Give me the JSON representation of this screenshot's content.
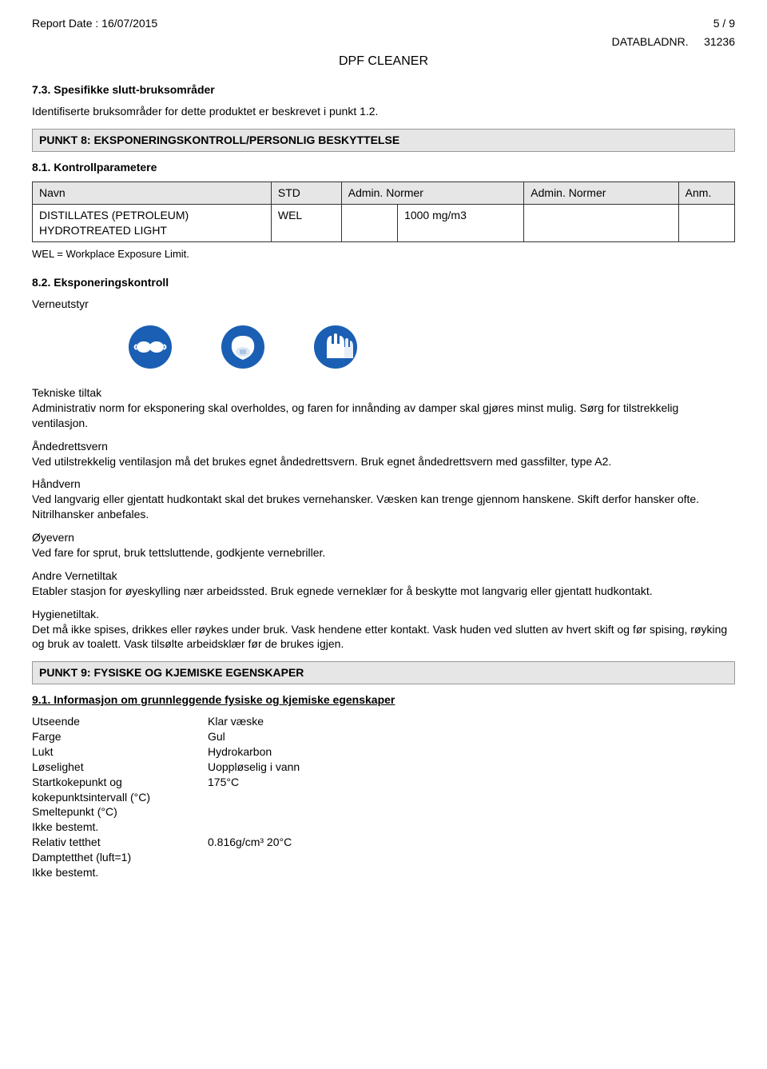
{
  "header": {
    "report_date_label": "Report Date : 16/07/2015",
    "page_info": "5 /  9",
    "datablad_label": "DATABLADNR.",
    "datablad_no": "31236",
    "title": "DPF CLEANER"
  },
  "section7": {
    "heading": "7.3. Spesifikke slutt-bruksområder",
    "text": "Identifiserte bruksområder for dette produktet er beskrevet i punkt 1.2."
  },
  "punkt8_bar": "PUNKT 8: EKSPONERINGSKONTROLL/PERSONLIG BESKYTTELSE",
  "section81": {
    "heading": "8.1. Kontrollparametere",
    "table": {
      "headers": [
        "Navn",
        "STD",
        "Admin. Normer",
        "Admin. Normer",
        "Anm."
      ],
      "col_widths": [
        "34%",
        "10%",
        "8%",
        "18%",
        "22%",
        "8%"
      ],
      "row": {
        "name": "DISTILLATES (PETROLEUM) HYDROTREATED LIGHT",
        "std": "WEL",
        "val1": "",
        "val2": "1000 mg/m3",
        "val3": "",
        "anm": ""
      }
    },
    "note": "WEL = Workplace Exposure Limit."
  },
  "section82": {
    "heading": "8.2. Eksponeringskontroll",
    "verneutstyr_label": "Verneutstyr",
    "icons": {
      "goggles_color": "#1a5fb4",
      "mask_color": "#1a5fb4",
      "gloves_color": "#1a5fb4",
      "bg": "#ffffff"
    },
    "blocks": [
      {
        "title": "Tekniske tiltak",
        "text": "Administrativ norm for eksponering skal overholdes,  og faren for innånding av damper skal gjøres minst mulig. Sørg for tilstrekkelig ventilasjon."
      },
      {
        "title": "Åndedrettsvern",
        "text": "Ved utilstrekkelig ventilasjon må det brukes egnet åndedrettsvern. Bruk egnet åndedrettsvern med gassfilter,  type A2."
      },
      {
        "title": "Håndvern",
        "text": "Ved langvarig eller gjentatt hudkontakt skal det brukes vernehansker. Væsken kan trenge gjennom hanskene. Skift derfor hansker ofte. Nitrilhansker anbefales."
      },
      {
        "title": "Øyevern",
        "text": "Ved fare for sprut,  bruk tettsluttende,  godkjente vernebriller."
      },
      {
        "title": "Andre Vernetiltak",
        "text": "Etabler stasjon for øyeskylling nær arbeidssted. Bruk egnede verneklær for å beskytte mot langvarig eller gjentatt hudkontakt."
      },
      {
        "title": "Hygienetiltak.",
        "text": "Det må ikke spises,  drikkes eller røykes under bruk. Vask hendene etter kontakt. Vask huden ved slutten av hvert skift og før spising,  røyking og bruk av toalett. Vask tilsølte arbeidsklær før de brukes igjen."
      }
    ]
  },
  "punkt9_bar": "PUNKT 9: FYSISKE OG KJEMISKE EGENSKAPER",
  "section91": {
    "heading": "9.1. Informasjon om grunnleggende fysiske og kjemiske egenskaper",
    "props": [
      {
        "label": "Utseende",
        "value": "Klar væske"
      },
      {
        "label": "Farge",
        "value": "Gul"
      },
      {
        "label": "Lukt",
        "value": "Hydrokarbon"
      },
      {
        "label": "Løselighet",
        "value": "Uoppløselig i vann"
      },
      {
        "label": "Startkokepunkt og kokepunktsintervall (°C)",
        "value": "175°C"
      },
      {
        "label": "Smeltepunkt (°C)",
        "value": ""
      }
    ],
    "ikke_bestemt1": "Ikke bestemt.",
    "props2": [
      {
        "label": "Relativ tetthet",
        "value": "0.816g/cm³ 20°C"
      },
      {
        "label": "Damptetthet (luft=1)",
        "value": ""
      }
    ],
    "ikke_bestemt2": "Ikke bestemt."
  }
}
